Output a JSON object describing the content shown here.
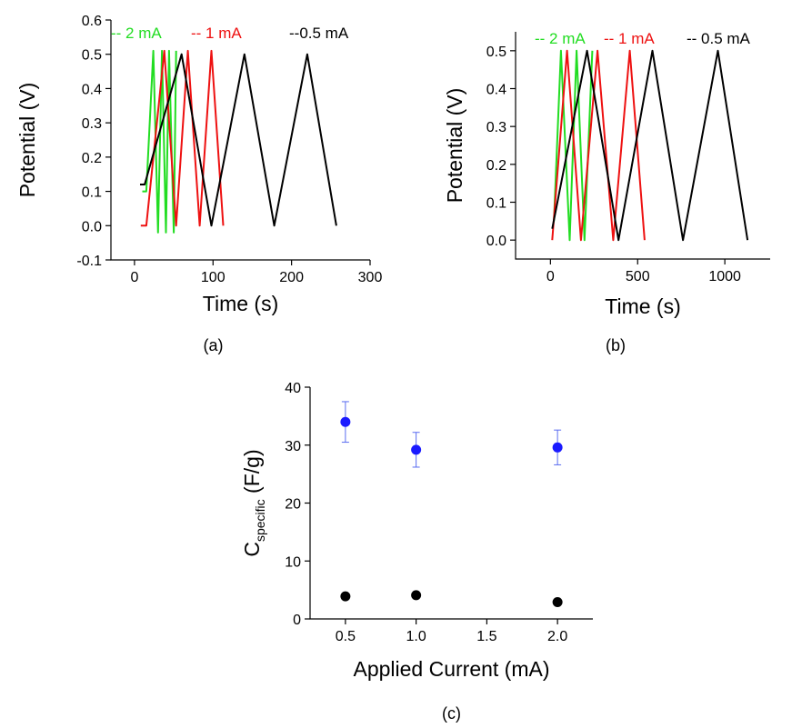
{
  "colors": {
    "green": "#22dd22",
    "red": "#ee1111",
    "black": "#000000",
    "blue": "#1a1aff",
    "blue_err": "#5a6cf0"
  },
  "chart_data": [
    {
      "type": "line",
      "panel_label": "(a)",
      "xlabel": "Time (s)",
      "ylabel": "Potential (V)",
      "xlim": [
        -30,
        300
      ],
      "ylim": [
        -0.1,
        0.6
      ],
      "xticks": [
        "0",
        "100",
        "200",
        "300"
      ],
      "yticks": [
        "-0.1",
        "0.0",
        "0.1",
        "0.2",
        "0.3",
        "0.4",
        "0.5",
        "0.6"
      ],
      "legend": [
        {
          "label": "-- 2 mA",
          "color": "#22dd22"
        },
        {
          "label": "-- 1 mA",
          "color": "#ee1111"
        },
        {
          "label": "--0.5 mA",
          "color": "#000000"
        }
      ],
      "series": [
        {
          "color": "#22dd22",
          "x": [
            10,
            15,
            24,
            30,
            35,
            40,
            44,
            50,
            53
          ],
          "y": [
            0.1,
            0.1,
            0.51,
            -0.02,
            0.51,
            -0.02,
            0.51,
            -0.02,
            0.51
          ]
        },
        {
          "color": "#ee1111",
          "x": [
            8,
            15,
            38,
            53,
            68,
            83,
            98,
            113
          ],
          "y": [
            0.0,
            0.0,
            0.51,
            0.0,
            0.51,
            0.0,
            0.51,
            0.0
          ]
        },
        {
          "color": "#000000",
          "x": [
            7,
            13,
            60,
            98,
            140,
            178,
            220,
            257
          ],
          "y": [
            0.12,
            0.12,
            0.5,
            0.0,
            0.5,
            0.0,
            0.5,
            0.0
          ]
        }
      ]
    },
    {
      "type": "line",
      "panel_label": "(b)",
      "xlabel": "Time (s)",
      "ylabel": "Potential (V)",
      "xlim": [
        -200,
        1260
      ],
      "ylim": [
        -0.05,
        0.55
      ],
      "xticks": [
        "0",
        "500",
        "1000"
      ],
      "yticks": [
        "0.0",
        "0.1",
        "0.2",
        "0.3",
        "0.4",
        "0.5"
      ],
      "legend": [
        {
          "label": "-- 2 mA",
          "color": "#22dd22"
        },
        {
          "label": "-- 1 mA",
          "color": "#ee1111"
        },
        {
          "label": "-- 0.5 mA",
          "color": "#000000"
        }
      ],
      "series": [
        {
          "color": "#22dd22",
          "x": [
            20,
            60,
            110,
            150,
            195,
            240
          ],
          "y": [
            0.05,
            0.5,
            0.0,
            0.5,
            0.0,
            0.5
          ]
        },
        {
          "color": "#ee1111",
          "x": [
            10,
            95,
            175,
            270,
            360,
            455,
            540
          ],
          "y": [
            0.0,
            0.5,
            0.0,
            0.5,
            0.0,
            0.5,
            0.0
          ]
        },
        {
          "color": "#000000",
          "x": [
            10,
            210,
            390,
            585,
            760,
            960,
            1130
          ],
          "y": [
            0.03,
            0.5,
            0.0,
            0.5,
            0.0,
            0.5,
            0.0
          ]
        }
      ]
    },
    {
      "type": "scatter",
      "panel_label": "(c)",
      "xlabel": "Applied Current (mA)",
      "ylabel_main": "C",
      "ylabel_sub": "specific",
      "ylabel_unit": " (F/g)",
      "xlim": [
        0.25,
        2.25
      ],
      "ylim": [
        0,
        40
      ],
      "xticks": [
        "0.5",
        "1.0",
        "1.5",
        "2.0"
      ],
      "yticks": [
        "0",
        "10",
        "20",
        "30",
        "40"
      ],
      "series": [
        {
          "color": "#1a1aff",
          "x": [
            0.5,
            1.0,
            2.0
          ],
          "y": [
            34.0,
            29.2,
            29.6
          ],
          "err": [
            3.5,
            3.0,
            3.0
          ]
        },
        {
          "color": "#000000",
          "x": [
            0.5,
            1.0,
            2.0
          ],
          "y": [
            3.9,
            4.1,
            2.9
          ]
        }
      ]
    }
  ]
}
